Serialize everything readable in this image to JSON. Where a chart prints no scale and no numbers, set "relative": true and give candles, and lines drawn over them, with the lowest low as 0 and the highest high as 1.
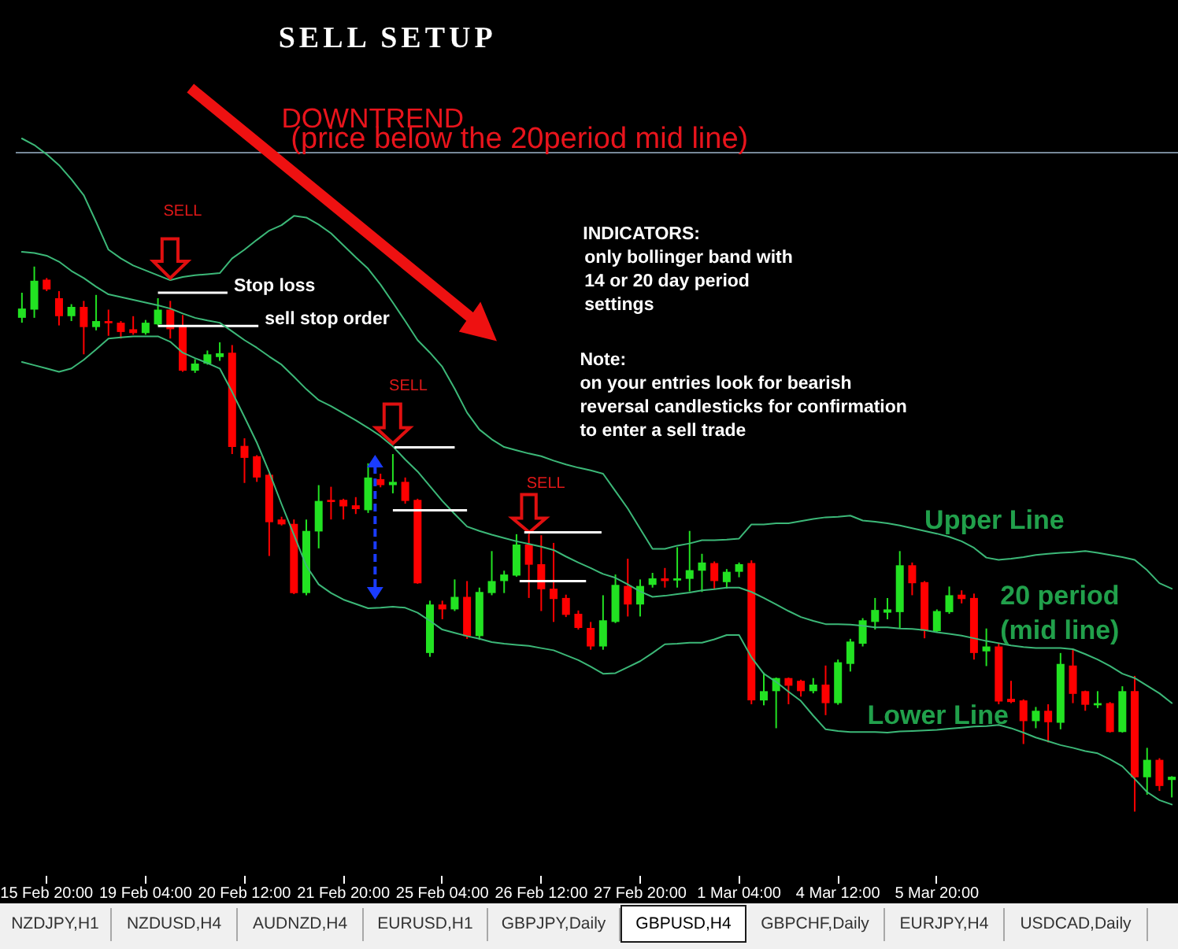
{
  "chart_data": {
    "type": "candlestick",
    "title": "SELL SETUP",
    "relative": true,
    "categories": [
      null,
      null,
      "15 Feb 20:00",
      null,
      null,
      null,
      null,
      null,
      null,
      null,
      "19 Feb 04:00",
      null,
      null,
      null,
      null,
      null,
      null,
      null,
      "20 Feb 12:00",
      null,
      null,
      null,
      null,
      null,
      null,
      null,
      "21 Feb 20:00",
      null,
      null,
      null,
      null,
      null,
      null,
      null,
      "25 Feb 04:00",
      null,
      null,
      null,
      null,
      null,
      null,
      null,
      "26 Feb 12:00",
      null,
      null,
      null,
      null,
      null,
      null,
      null,
      "27 Feb 20:00",
      null,
      null,
      null,
      null,
      null,
      null,
      null,
      "1 Mar 04:00",
      null,
      null,
      null,
      null,
      null,
      null,
      null,
      "4 Mar 12:00",
      null,
      null,
      null,
      null,
      null,
      null,
      null,
      "5 Mar 20:00",
      null,
      null,
      null,
      null,
      null,
      null,
      null,
      null,
      null,
      null,
      null,
      null,
      null,
      null,
      null,
      null,
      null,
      null,
      null
    ],
    "ohlc": [
      [
        0.906,
        0.952,
        0.897,
        0.923
      ],
      [
        0.921,
        1.0,
        0.906,
        0.974
      ],
      [
        0.976,
        0.979,
        0.955,
        0.958
      ],
      [
        0.942,
        0.955,
        0.892,
        0.909
      ],
      [
        0.909,
        0.931,
        0.9,
        0.926
      ],
      [
        0.926,
        0.937,
        0.839,
        0.889
      ],
      [
        0.889,
        0.948,
        0.883,
        0.9
      ],
      [
        0.9,
        0.921,
        0.873,
        0.896
      ],
      [
        0.897,
        0.9,
        0.868,
        0.88
      ],
      [
        0.885,
        0.909,
        0.875,
        0.878
      ],
      [
        0.878,
        0.902,
        0.875,
        0.897
      ],
      [
        0.894,
        0.942,
        0.892,
        0.921
      ],
      [
        0.921,
        0.937,
        0.868,
        0.885
      ],
      [
        0.89,
        0.911,
        0.807,
        0.809
      ],
      [
        0.809,
        0.83,
        0.805,
        0.822
      ],
      [
        0.822,
        0.846,
        0.82,
        0.839
      ],
      [
        0.834,
        0.861,
        0.827,
        0.841
      ],
      [
        0.842,
        0.856,
        0.656,
        0.669
      ],
      [
        0.671,
        0.685,
        0.603,
        0.649
      ],
      [
        0.652,
        0.654,
        0.605,
        0.613
      ],
      [
        0.618,
        0.621,
        0.469,
        0.531
      ],
      [
        0.536,
        0.541,
        0.525,
        0.527
      ],
      [
        0.528,
        0.536,
        0.399,
        0.401
      ],
      [
        0.401,
        0.536,
        0.397,
        0.515
      ],
      [
        0.514,
        0.599,
        0.483,
        0.57
      ],
      [
        0.572,
        0.596,
        0.536,
        0.568
      ],
      [
        0.572,
        0.574,
        0.536,
        0.56
      ],
      [
        0.562,
        0.577,
        0.546,
        0.555
      ],
      [
        0.553,
        0.639,
        0.548,
        0.613
      ],
      [
        0.61,
        0.62,
        0.595,
        0.599
      ],
      [
        0.599,
        0.656,
        0.584,
        0.605
      ],
      [
        0.605,
        0.613,
        0.565,
        0.57
      ],
      [
        0.572,
        0.574,
        0.418,
        0.419
      ],
      [
        0.291,
        0.387,
        0.284,
        0.38
      ],
      [
        0.38,
        0.387,
        0.353,
        0.371
      ],
      [
        0.371,
        0.426,
        0.368,
        0.394
      ],
      [
        0.394,
        0.423,
        0.317,
        0.322
      ],
      [
        0.322,
        0.411,
        0.315,
        0.403
      ],
      [
        0.401,
        0.478,
        0.397,
        0.423
      ],
      [
        0.423,
        0.442,
        0.401,
        0.435
      ],
      [
        0.433,
        0.509,
        0.431,
        0.49
      ],
      [
        0.49,
        0.509,
        0.392,
        0.453
      ],
      [
        0.454,
        0.507,
        0.368,
        0.408
      ],
      [
        0.409,
        0.493,
        0.348,
        0.39
      ],
      [
        0.392,
        0.398,
        0.357,
        0.361
      ],
      [
        0.363,
        0.369,
        0.334,
        0.337
      ],
      [
        0.337,
        0.348,
        0.297,
        0.303
      ],
      [
        0.303,
        0.397,
        0.297,
        0.351
      ],
      [
        0.348,
        0.435,
        0.346,
        0.416
      ],
      [
        0.414,
        0.464,
        0.358,
        0.38
      ],
      [
        0.38,
        0.426,
        0.358,
        0.414
      ],
      [
        0.416,
        0.438,
        0.411,
        0.428
      ],
      [
        0.428,
        0.447,
        0.411,
        0.423
      ],
      [
        0.424,
        0.485,
        0.411,
        0.428
      ],
      [
        0.427,
        0.515,
        0.404,
        0.443
      ],
      [
        0.442,
        0.473,
        0.403,
        0.457
      ],
      [
        0.456,
        0.459,
        0.409,
        0.423
      ],
      [
        0.421,
        0.445,
        0.409,
        0.44
      ],
      [
        0.44,
        0.457,
        0.43,
        0.454
      ],
      [
        0.456,
        0.461,
        0.197,
        0.204
      ],
      [
        0.204,
        0.255,
        0.195,
        0.221
      ],
      [
        0.221,
        0.246,
        0.153,
        0.245
      ],
      [
        0.245,
        0.246,
        0.197,
        0.231
      ],
      [
        0.24,
        0.242,
        0.211,
        0.221
      ],
      [
        0.221,
        0.245,
        0.217,
        0.233
      ],
      [
        0.233,
        0.268,
        0.177,
        0.199
      ],
      [
        0.199,
        0.279,
        0.196,
        0.274
      ],
      [
        0.271,
        0.317,
        0.257,
        0.312
      ],
      [
        0.308,
        0.355,
        0.303,
        0.351
      ],
      [
        0.348,
        0.392,
        0.334,
        0.37
      ],
      [
        0.365,
        0.392,
        0.353,
        0.371
      ],
      [
        0.366,
        0.478,
        0.336,
        0.452
      ],
      [
        0.452,
        0.457,
        0.397,
        0.419
      ],
      [
        0.421,
        0.423,
        0.318,
        0.332
      ],
      [
        0.331,
        0.371,
        0.329,
        0.368
      ],
      [
        0.366,
        0.413,
        0.363,
        0.397
      ],
      [
        0.398,
        0.406,
        0.382,
        0.39
      ],
      [
        0.392,
        0.4,
        0.279,
        0.291
      ],
      [
        0.294,
        0.336,
        0.267,
        0.303
      ],
      [
        0.303,
        0.31,
        0.197,
        0.202
      ],
      [
        0.207,
        0.24,
        0.199,
        0.201
      ],
      [
        0.204,
        0.206,
        0.124,
        0.166
      ],
      [
        0.166,
        0.192,
        0.153,
        0.185
      ],
      [
        0.185,
        0.197,
        0.127,
        0.164
      ],
      [
        0.163,
        0.291,
        0.151,
        0.271
      ],
      [
        0.268,
        0.298,
        0.199,
        0.216
      ],
      [
        0.221,
        0.222,
        0.185,
        0.196
      ],
      [
        0.195,
        0.221,
        0.19,
        0.199
      ],
      [
        0.199,
        0.201,
        0.145,
        0.146
      ],
      [
        0.146,
        0.23,
        0.145,
        0.221
      ],
      [
        0.221,
        0.249,
        0.0,
        0.063
      ],
      [
        0.063,
        0.117,
        0.031,
        0.095
      ],
      [
        0.095,
        0.098,
        0.038,
        0.047
      ],
      [
        0.058,
        0.065,
        0.026,
        0.064
      ]
    ],
    "colors": [
      "#22e222",
      "#22e222",
      "#ff0000",
      "#ff0000",
      "#22e222",
      "#ff0000",
      "#22e222",
      "#ff0000",
      "#ff0000",
      "#ff0000",
      "#22e222",
      "#22e222",
      "#ff0000",
      "#ff0000",
      "#22e222",
      "#22e222",
      "#22e222",
      "#ff0000",
      "#ff0000",
      "#ff0000",
      "#ff0000",
      "#ff0000",
      "#ff0000",
      "#22e222",
      "#22e222",
      "#ff0000",
      "#ff0000",
      "#ff0000",
      "#22e222",
      "#ff0000",
      "#22e222",
      "#ff0000",
      "#ff0000",
      "#22e222",
      "#ff0000",
      "#22e222",
      "#ff0000",
      "#22e222",
      "#22e222",
      "#22e222",
      "#22e222",
      "#ff0000",
      "#ff0000",
      "#ff0000",
      "#ff0000",
      "#ff0000",
      "#ff0000",
      "#22e222",
      "#22e222",
      "#ff0000",
      "#22e222",
      "#22e222",
      "#ff0000",
      "#22e222",
      "#22e222",
      "#22e222",
      "#ff0000",
      "#22e222",
      "#22e222",
      "#ff0000",
      "#22e222",
      "#22e222",
      "#ff0000",
      "#ff0000",
      "#22e222",
      "#ff0000",
      "#22e222",
      "#22e222",
      "#22e222",
      "#22e222",
      "#22e222",
      "#22e222",
      "#ff0000",
      "#ff0000",
      "#22e222",
      "#22e222",
      "#ff0000",
      "#ff0000",
      "#22e222",
      "#ff0000",
      "#ff0000",
      "#ff0000",
      "#22e222",
      "#ff0000",
      "#22e222",
      "#ff0000",
      "#ff0000",
      "#22e222",
      "#ff0000",
      "#22e222",
      "#ff0000",
      "#22e222",
      "#ff0000",
      "#22e222"
    ],
    "series": [
      {
        "name": "Upper Line",
        "type": "line",
        "color": "#3cb878",
        "values": [
          1.235,
          1.223,
          1.206,
          1.186,
          1.16,
          1.131,
          1.082,
          1.031,
          1.015,
          1.002,
          0.993,
          0.984,
          0.975,
          0.981,
          0.984,
          0.986,
          0.988,
          1.015,
          1.031,
          1.049,
          1.066,
          1.076,
          1.093,
          1.09,
          1.077,
          1.061,
          1.039,
          1.017,
          0.996,
          0.967,
          0.934,
          0.9,
          0.865,
          0.842,
          0.816,
          0.776,
          0.732,
          0.701,
          0.683,
          0.669,
          0.663,
          0.657,
          0.652,
          0.644,
          0.637,
          0.631,
          0.626,
          0.62,
          0.588,
          0.556,
          0.519,
          0.482,
          0.482,
          0.488,
          0.492,
          0.498,
          0.498,
          0.499,
          0.501,
          0.527,
          0.527,
          0.529,
          0.529,
          0.533,
          0.537,
          0.54,
          0.541,
          0.543,
          0.534,
          0.532,
          0.529,
          0.525,
          0.52,
          0.515,
          0.51,
          0.504,
          0.496,
          0.484,
          0.466,
          0.462,
          0.464,
          0.467,
          0.471,
          0.473,
          0.475,
          0.476,
          0.478,
          0.475,
          0.471,
          0.467,
          0.462,
          0.443,
          0.419,
          0.409
        ]
      },
      {
        "name": "20 period (mid line)",
        "type": "line",
        "color": "#3cb878",
        "values": [
          1.027,
          1.025,
          1.02,
          1.009,
          0.992,
          0.979,
          0.963,
          0.949,
          0.944,
          0.939,
          0.934,
          0.929,
          0.923,
          0.914,
          0.906,
          0.901,
          0.897,
          0.881,
          0.865,
          0.851,
          0.835,
          0.82,
          0.798,
          0.775,
          0.755,
          0.744,
          0.731,
          0.718,
          0.704,
          0.689,
          0.67,
          0.646,
          0.624,
          0.597,
          0.57,
          0.546,
          0.523,
          0.515,
          0.508,
          0.502,
          0.496,
          0.491,
          0.486,
          0.48,
          0.468,
          0.457,
          0.447,
          0.436,
          0.429,
          0.417,
          0.404,
          0.394,
          0.396,
          0.399,
          0.402,
          0.406,
          0.408,
          0.411,
          0.411,
          0.403,
          0.392,
          0.38,
          0.368,
          0.357,
          0.35,
          0.344,
          0.344,
          0.343,
          0.341,
          0.338,
          0.338,
          0.336,
          0.335,
          0.333,
          0.329,
          0.326,
          0.323,
          0.318,
          0.313,
          0.309,
          0.305,
          0.302,
          0.3,
          0.3,
          0.3,
          0.298,
          0.289,
          0.279,
          0.267,
          0.253,
          0.245,
          0.231,
          0.217,
          0.199
        ]
      },
      {
        "name": "Lower Line",
        "type": "line",
        "color": "#3cb878",
        "values": [
          0.825,
          0.819,
          0.813,
          0.807,
          0.813,
          0.829,
          0.848,
          0.868,
          0.87,
          0.872,
          0.872,
          0.872,
          0.862,
          0.842,
          0.832,
          0.823,
          0.813,
          0.77,
          0.724,
          0.677,
          0.623,
          0.564,
          0.508,
          0.451,
          0.417,
          0.401,
          0.389,
          0.381,
          0.373,
          0.374,
          0.376,
          0.374,
          0.365,
          0.35,
          0.334,
          0.328,
          0.322,
          0.317,
          0.311,
          0.308,
          0.306,
          0.304,
          0.3,
          0.296,
          0.287,
          0.278,
          0.266,
          0.253,
          0.254,
          0.265,
          0.276,
          0.291,
          0.307,
          0.308,
          0.31,
          0.31,
          0.316,
          0.324,
          0.324,
          0.283,
          0.253,
          0.238,
          0.22,
          0.203,
          0.176,
          0.151,
          0.148,
          0.146,
          0.146,
          0.146,
          0.145,
          0.147,
          0.148,
          0.149,
          0.15,
          0.152,
          0.154,
          0.156,
          0.157,
          0.159,
          0.153,
          0.145,
          0.136,
          0.129,
          0.122,
          0.117,
          0.111,
          0.107,
          0.096,
          0.083,
          0.06,
          0.036,
          0.021,
          0.013
        ]
      }
    ],
    "ref_lines": [
      {
        "axis": "y",
        "value": 1.209,
        "color": "#778899"
      },
      {
        "axis": "y",
        "value": 0.952,
        "label": "Stop loss",
        "color": "#ffffff"
      },
      {
        "axis": "y",
        "value": 0.891,
        "label": "sell stop order",
        "color": "#ffffff"
      }
    ],
    "annotations": [
      "DOWNTREND",
      "(price below the 20period mid line)",
      "SELL",
      "SELL",
      "SELL",
      "INDICATORS:",
      "only bollinger band with",
      "14 or 20 day period",
      "settings",
      "Note:",
      "on your entries look for bearish",
      "reversal candlesticks for confirmation",
      "to enter a sell trade",
      "NZDJPY,H1",
      "NZDUSD,H4",
      "AUDNZD,H4",
      "EURUSD,H1",
      "GBPJPY,Daily",
      "GBPUSD,H4",
      "GBPCHF,Daily",
      "EURJPY,H4",
      "USDCAD,Daily"
    ]
  }
}
